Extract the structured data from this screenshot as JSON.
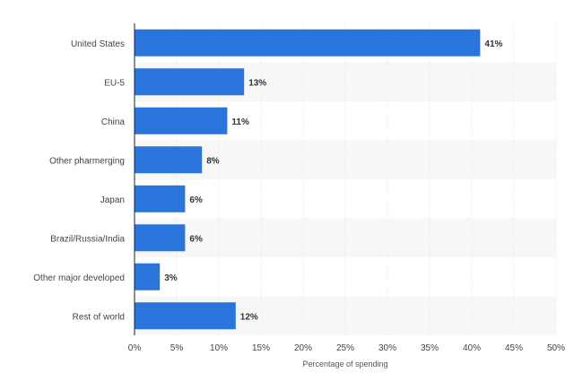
{
  "chart_data": {
    "type": "bar",
    "orientation": "horizontal",
    "categories": [
      "United States",
      "EU-5",
      "China",
      "Other pharmerging",
      "Japan",
      "Brazil/Russia/India",
      "Other major developed",
      "Rest of world"
    ],
    "values": [
      41,
      13,
      11,
      8,
      6,
      6,
      3,
      12
    ],
    "value_labels": [
      "41%",
      "13%",
      "11%",
      "8%",
      "6%",
      "6%",
      "3%",
      "12%"
    ],
    "xlabel": "Percentage of spending",
    "ylabel": "",
    "xlim": [
      0,
      50
    ],
    "x_ticks": [
      0,
      5,
      10,
      15,
      20,
      25,
      30,
      35,
      40,
      45,
      50
    ],
    "x_tick_labels": [
      "0%",
      "5%",
      "10%",
      "15%",
      "20%",
      "25%",
      "30%",
      "35%",
      "40%",
      "45%",
      "50%"
    ],
    "grid": "vertical",
    "alternating_row_bands": true,
    "colors": {
      "bar": "#2a75dc",
      "band": "#f7f7f7",
      "grid": "#e3e3e3",
      "axis": "#222222"
    }
  }
}
